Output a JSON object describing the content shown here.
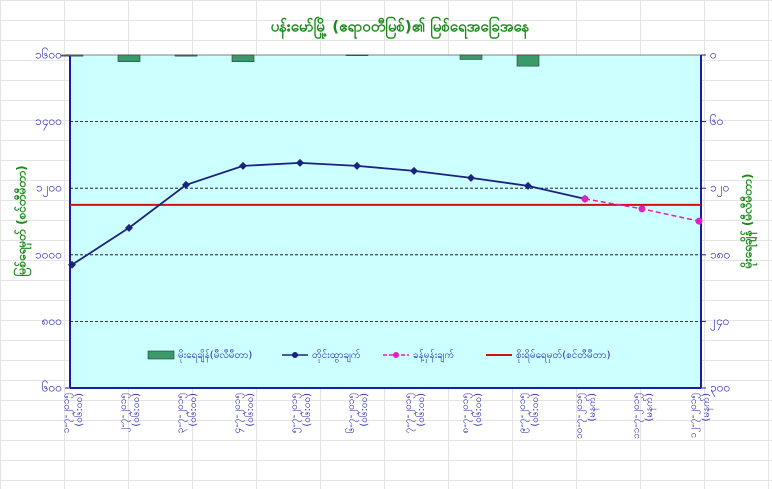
{
  "chart_data": {
    "type": "line",
    "title": "ပန်းမော်မြို့ (ဧရာဝတီမြစ်)၏ မြစ်ရေအခြေအနေ",
    "ylabel": "မြစ်ရေမှတ် (စင်တီမီတာ)",
    "y2label": "မိုးရေချိန် (မီလီမီတာ)",
    "categories": [
      "၁-၇-၂၀၁၅",
      "၂-၇-၂၀၁၅",
      "၃-၇-၂၀၁၅",
      "၄-၇-၂၀၁၅",
      "၅-၇-၂၀၁၅",
      "၆-၇-၂၀၁၅",
      "၇-၇-၂၀၁၅",
      "၈-၇-၂၀၁၅",
      "၉-၇-၂၀၁၅",
      "၁၀-၇-၂၀၁၅",
      "၁၁-၇-၂၀၁၅",
      "၁၂-၇-၂၀၁၅"
    ],
    "category_times": [
      "(၀၆:၀၀)",
      "(၀၆:၀၀)",
      "(၀၆:၀၀)",
      "(၀၆:၀၀)",
      "(၀၆:၀၀)",
      "(၀၆:၀၀)",
      "(၀၆:၀၀)",
      "(၀၆:၀၀)",
      "(၀၆:၀၀)",
      "(မနက်)",
      "(မနက်)",
      "(မနက်)"
    ],
    "ylim": [
      600,
      1600
    ],
    "yticks": [
      {
        "value": 600,
        "label": "၆၀၀"
      },
      {
        "value": 800,
        "label": "၈၀၀"
      },
      {
        "value": 1000,
        "label": "၁၀၀၀"
      },
      {
        "value": 1200,
        "label": "၁၂၀၀"
      },
      {
        "value": 1400,
        "label": "၁၄၀၀"
      },
      {
        "value": 1600,
        "label": "၁၆၀၀"
      }
    ],
    "y2lim": [
      300,
      0
    ],
    "y2ticks": [
      {
        "value": 0,
        "label": "၀"
      },
      {
        "value": 60,
        "label": "၆၀"
      },
      {
        "value": 120,
        "label": "၁၂၀"
      },
      {
        "value": 180,
        "label": "၁၈၀"
      },
      {
        "value": 240,
        "label": "၂၄၀"
      },
      {
        "value": 300,
        "label": "၃၀၀"
      }
    ],
    "grid": true,
    "series": [
      {
        "name": "မိုးရေချိန်(မီလီမီတာ)",
        "type": "bar",
        "axis": "y2",
        "color": "#3a9a6a",
        "values": [
          1,
          6,
          1,
          6,
          0,
          0.5,
          0,
          4,
          10,
          0,
          0,
          0
        ]
      },
      {
        "name": "တိုင်းထွာချက်",
        "type": "line",
        "color": "#1a237e",
        "values": [
          970,
          1081,
          1210,
          1267,
          1276,
          1267,
          1252,
          1231,
          1207,
          1168,
          null,
          null
        ]
      },
      {
        "name": "ခန့်မှန်းချက်",
        "type": "line",
        "dashed": true,
        "color": "#e020c0",
        "values": [
          null,
          null,
          null,
          null,
          null,
          null,
          null,
          null,
          null,
          1168,
          1138,
          1101
        ]
      }
    ],
    "danger_line": {
      "name": "စိုးရိမ်ရေမှတ်(စင်တီမီတာ)",
      "color": "#d01010",
      "value": 1150
    }
  }
}
